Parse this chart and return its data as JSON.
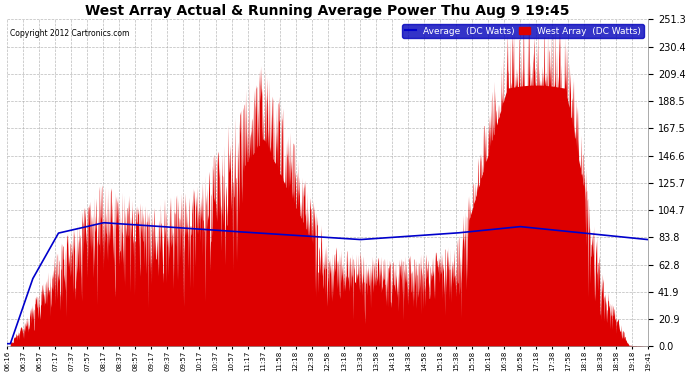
{
  "title": "West Array Actual & Running Average Power Thu Aug 9 19:45",
  "copyright": "Copyright 2012 Cartronics.com",
  "legend_labels": [
    "Average  (DC Watts)",
    "West Array  (DC Watts)"
  ],
  "legend_colors": [
    "#0000cc",
    "#cc0000"
  ],
  "legend_bg": "#0000bb",
  "y_ticks": [
    0.0,
    20.9,
    41.9,
    62.8,
    83.8,
    104.7,
    125.7,
    146.6,
    167.5,
    188.5,
    209.4,
    230.4,
    251.3
  ],
  "y_max": 251.3,
  "y_min": 0.0,
  "background_color": "#ffffff",
  "plot_bg": "#ffffff",
  "grid_color": "#aaaaaa",
  "fill_color": "#dd0000",
  "line_color": "#0000cc",
  "x_labels": [
    "06:16",
    "06:37",
    "06:57",
    "07:17",
    "07:37",
    "07:57",
    "08:17",
    "08:37",
    "08:57",
    "09:17",
    "09:37",
    "09:57",
    "10:17",
    "10:37",
    "10:57",
    "11:17",
    "11:37",
    "11:58",
    "12:18",
    "12:38",
    "12:58",
    "13:18",
    "13:38",
    "13:58",
    "14:18",
    "14:38",
    "14:58",
    "15:18",
    "15:38",
    "15:58",
    "16:18",
    "16:38",
    "16:58",
    "17:18",
    "17:38",
    "17:58",
    "18:18",
    "18:38",
    "18:58",
    "19:18",
    "19:41"
  ],
  "figwidth": 6.9,
  "figheight": 3.75,
  "dpi": 100
}
